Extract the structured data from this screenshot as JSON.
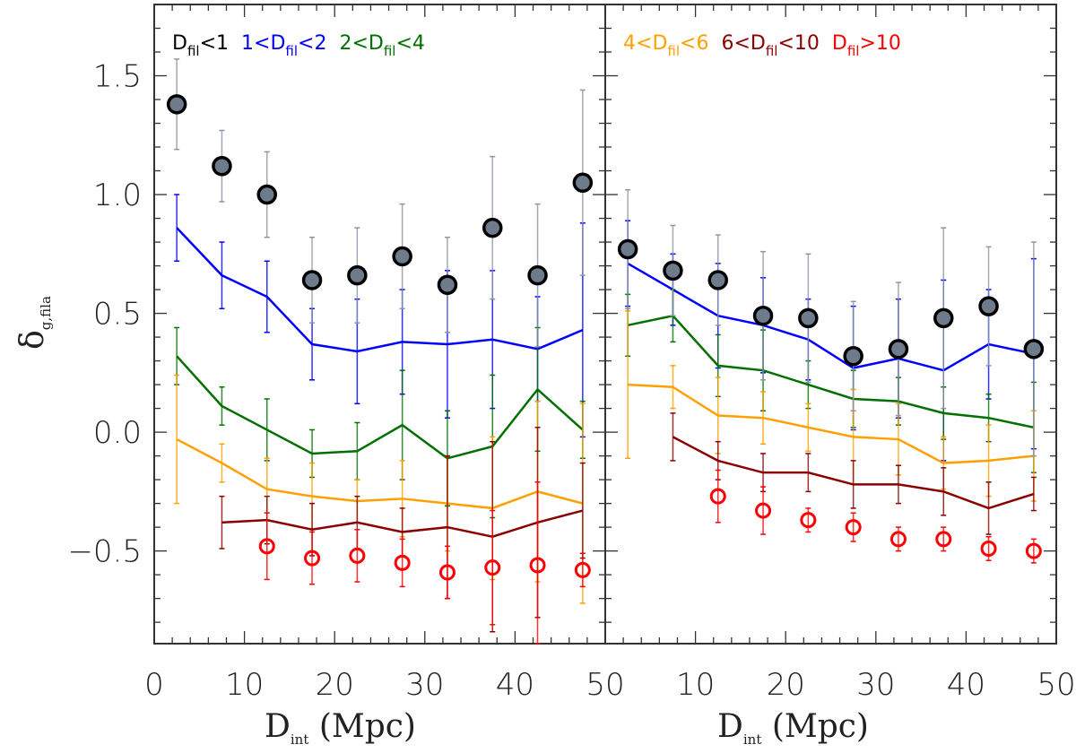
{
  "chart_data": {
    "type": "scatter",
    "xlabel": {
      "main": "D",
      "sub": "int",
      "rest": " (Mpc)"
    },
    "ylabel": {
      "main": "δ",
      "sub": "g,fila"
    },
    "xlim": [
      0,
      50
    ],
    "ylim": [
      -0.89,
      1.8
    ],
    "y_ticks": [
      "−0.5",
      "0.0",
      "0.5",
      "1.0",
      "1.5"
    ],
    "y_tick_values": [
      -0.5,
      0.0,
      0.5,
      1.0,
      1.5
    ],
    "x_ticks_left": [
      "0",
      "10",
      "20",
      "30",
      "40",
      "50"
    ],
    "x_ticks_right": [
      "10",
      "20",
      "30",
      "40",
      "50"
    ],
    "x_tick_values": [
      0,
      10,
      20,
      30,
      40,
      50
    ],
    "grid": false,
    "x": [
      2.5,
      7.5,
      12.5,
      17.5,
      22.5,
      27.5,
      32.5,
      37.5,
      42.5,
      47.5
    ],
    "colors": {
      "Dfil<1": "#000000",
      "1<Dfil<2": "#0000ff",
      "2<Dfil<4": "#007000",
      "4<Dfil<6": "#ffa000",
      "6<Dfil<10": "#8b0000",
      "Dfil>10": "#ff0000",
      "marker_fill": "#6e7b8b",
      "errbar_gray": "#8a96a3"
    },
    "panels": [
      {
        "legend": [
          {
            "pre": "",
            "main": "D",
            "sub": "fil",
            "post": "<1",
            "color": "#000000"
          },
          {
            "pre": "1<",
            "main": "D",
            "sub": "fil",
            "post": "<2",
            "color": "#0000ff"
          },
          {
            "pre": "2<",
            "main": "D",
            "sub": "fil",
            "post": "<4",
            "color": "#007000"
          }
        ],
        "series": [
          {
            "name": "Dfil<1",
            "style": "filled-circle",
            "start": 0,
            "y": [
              1.38,
              1.12,
              1.0,
              0.64,
              0.66,
              0.74,
              0.62,
              0.86,
              0.66,
              1.05
            ],
            "err": [
              0.19,
              0.15,
              0.18,
              0.18,
              0.2,
              0.22,
              0.2,
              0.3,
              0.3,
              0.39
            ]
          },
          {
            "name": "1<Dfil<2",
            "style": "line",
            "start": 0,
            "y": [
              0.86,
              0.66,
              0.57,
              0.37,
              0.34,
              0.38,
              0.37,
              0.39,
              0.35,
              0.43
            ],
            "err": [
              0.14,
              0.14,
              0.15,
              0.15,
              0.22,
              0.22,
              0.31,
              0.29,
              0.22,
              0.45
            ]
          },
          {
            "name": "2<Dfil<4",
            "style": "line",
            "start": 0,
            "y": [
              0.32,
              0.11,
              0.01,
              -0.09,
              -0.08,
              0.03,
              -0.11,
              -0.06,
              0.18,
              0.01
            ],
            "err": [
              0.12,
              0.08,
              0.13,
              0.1,
              0.12,
              0.23,
              0.2,
              0.3,
              0.26,
              0.12
            ]
          },
          {
            "name": "4<Dfil<6",
            "style": "line",
            "start": 0,
            "y": [
              -0.03,
              -0.13,
              -0.24,
              -0.27,
              -0.29,
              -0.28,
              -0.3,
              -0.32,
              -0.25,
              -0.3
            ],
            "err": [
              0.27,
              0.08,
              0.13,
              0.14,
              0.09,
              0.16,
              0.2,
              0.3,
              0.38,
              0.42
            ]
          },
          {
            "name": "6<Dfil<10",
            "style": "line",
            "start": 1,
            "y": [
              -0.38,
              -0.37,
              -0.41,
              -0.38,
              -0.42,
              -0.4,
              -0.44,
              -0.38,
              -0.33
            ],
            "err": [
              0.11,
              0.1,
              0.11,
              0.11,
              0.1,
              0.3,
              0.4,
              0.4,
              0.2
            ]
          },
          {
            "name": "Dfil>10",
            "style": "open-circle",
            "start": 2,
            "y": [
              -0.48,
              -0.53,
              -0.52,
              -0.55,
              -0.59,
              -0.57,
              -0.56,
              -0.58
            ],
            "err": [
              0.14,
              0.11,
              0.11,
              0.1,
              0.11,
              0.24,
              0.35,
              0.07
            ]
          }
        ]
      },
      {
        "legend": [
          {
            "pre": "4<",
            "main": "D",
            "sub": "fil",
            "post": "<6",
            "color": "#ffa000"
          },
          {
            "pre": "6<",
            "main": "D",
            "sub": "fil",
            "post": "<10",
            "color": "#8b0000"
          },
          {
            "pre": "",
            "main": "D",
            "sub": "fil",
            "post": ">10",
            "color": "#ff0000"
          }
        ],
        "series": [
          {
            "name": "Dfil<1",
            "style": "filled-circle",
            "start": 0,
            "y": [
              0.77,
              0.68,
              0.64,
              0.49,
              0.48,
              0.32,
              0.35,
              0.48,
              0.53,
              0.35
            ],
            "err": [
              0.25,
              0.19,
              0.19,
              0.27,
              0.27,
              0.23,
              0.28,
              0.38,
              0.25,
              0.45
            ]
          },
          {
            "name": "1<Dfil<2",
            "style": "line",
            "start": 0,
            "y": [
              0.71,
              0.6,
              0.49,
              0.45,
              0.39,
              0.27,
              0.31,
              0.26,
              0.37,
              0.33
            ],
            "err": [
              0.18,
              0.15,
              0.22,
              0.2,
              0.17,
              0.26,
              0.25,
              0.38,
              0.23,
              0.4
            ]
          },
          {
            "name": "2<Dfil<4",
            "style": "line",
            "start": 0,
            "y": [
              0.45,
              0.49,
              0.28,
              0.26,
              0.2,
              0.14,
              0.13,
              0.08,
              0.06,
              0.02
            ],
            "err": [
              0.13,
              0.11,
              0.13,
              0.17,
              0.1,
              0.12,
              0.1,
              0.11,
              0.1,
              0.19
            ]
          },
          {
            "name": "4<Dfil<6",
            "style": "line",
            "start": 0,
            "y": [
              0.2,
              0.19,
              0.07,
              0.06,
              0.02,
              -0.02,
              -0.03,
              -0.13,
              -0.12,
              -0.1
            ],
            "err": [
              0.31,
              0.09,
              0.16,
              0.11,
              0.1,
              0.2,
              0.15,
              0.11,
              0.15,
              0.19
            ]
          },
          {
            "name": "6<Dfil<10",
            "style": "line",
            "start": 1,
            "y": [
              -0.02,
              -0.12,
              -0.17,
              -0.17,
              -0.22,
              -0.22,
              -0.25,
              -0.32,
              -0.26
            ],
            "err": [
              0.1,
              0.08,
              0.08,
              0.08,
              0.1,
              0.08,
              0.1,
              0.11,
              0.07
            ]
          },
          {
            "name": "Dfil>10",
            "style": "open-circle",
            "start": 2,
            "y": [
              -0.27,
              -0.33,
              -0.37,
              -0.4,
              -0.45,
              -0.45,
              -0.49,
              -0.5
            ],
            "err": [
              0.11,
              0.1,
              0.05,
              0.06,
              0.05,
              0.05,
              0.05,
              0.05
            ]
          }
        ]
      }
    ]
  }
}
